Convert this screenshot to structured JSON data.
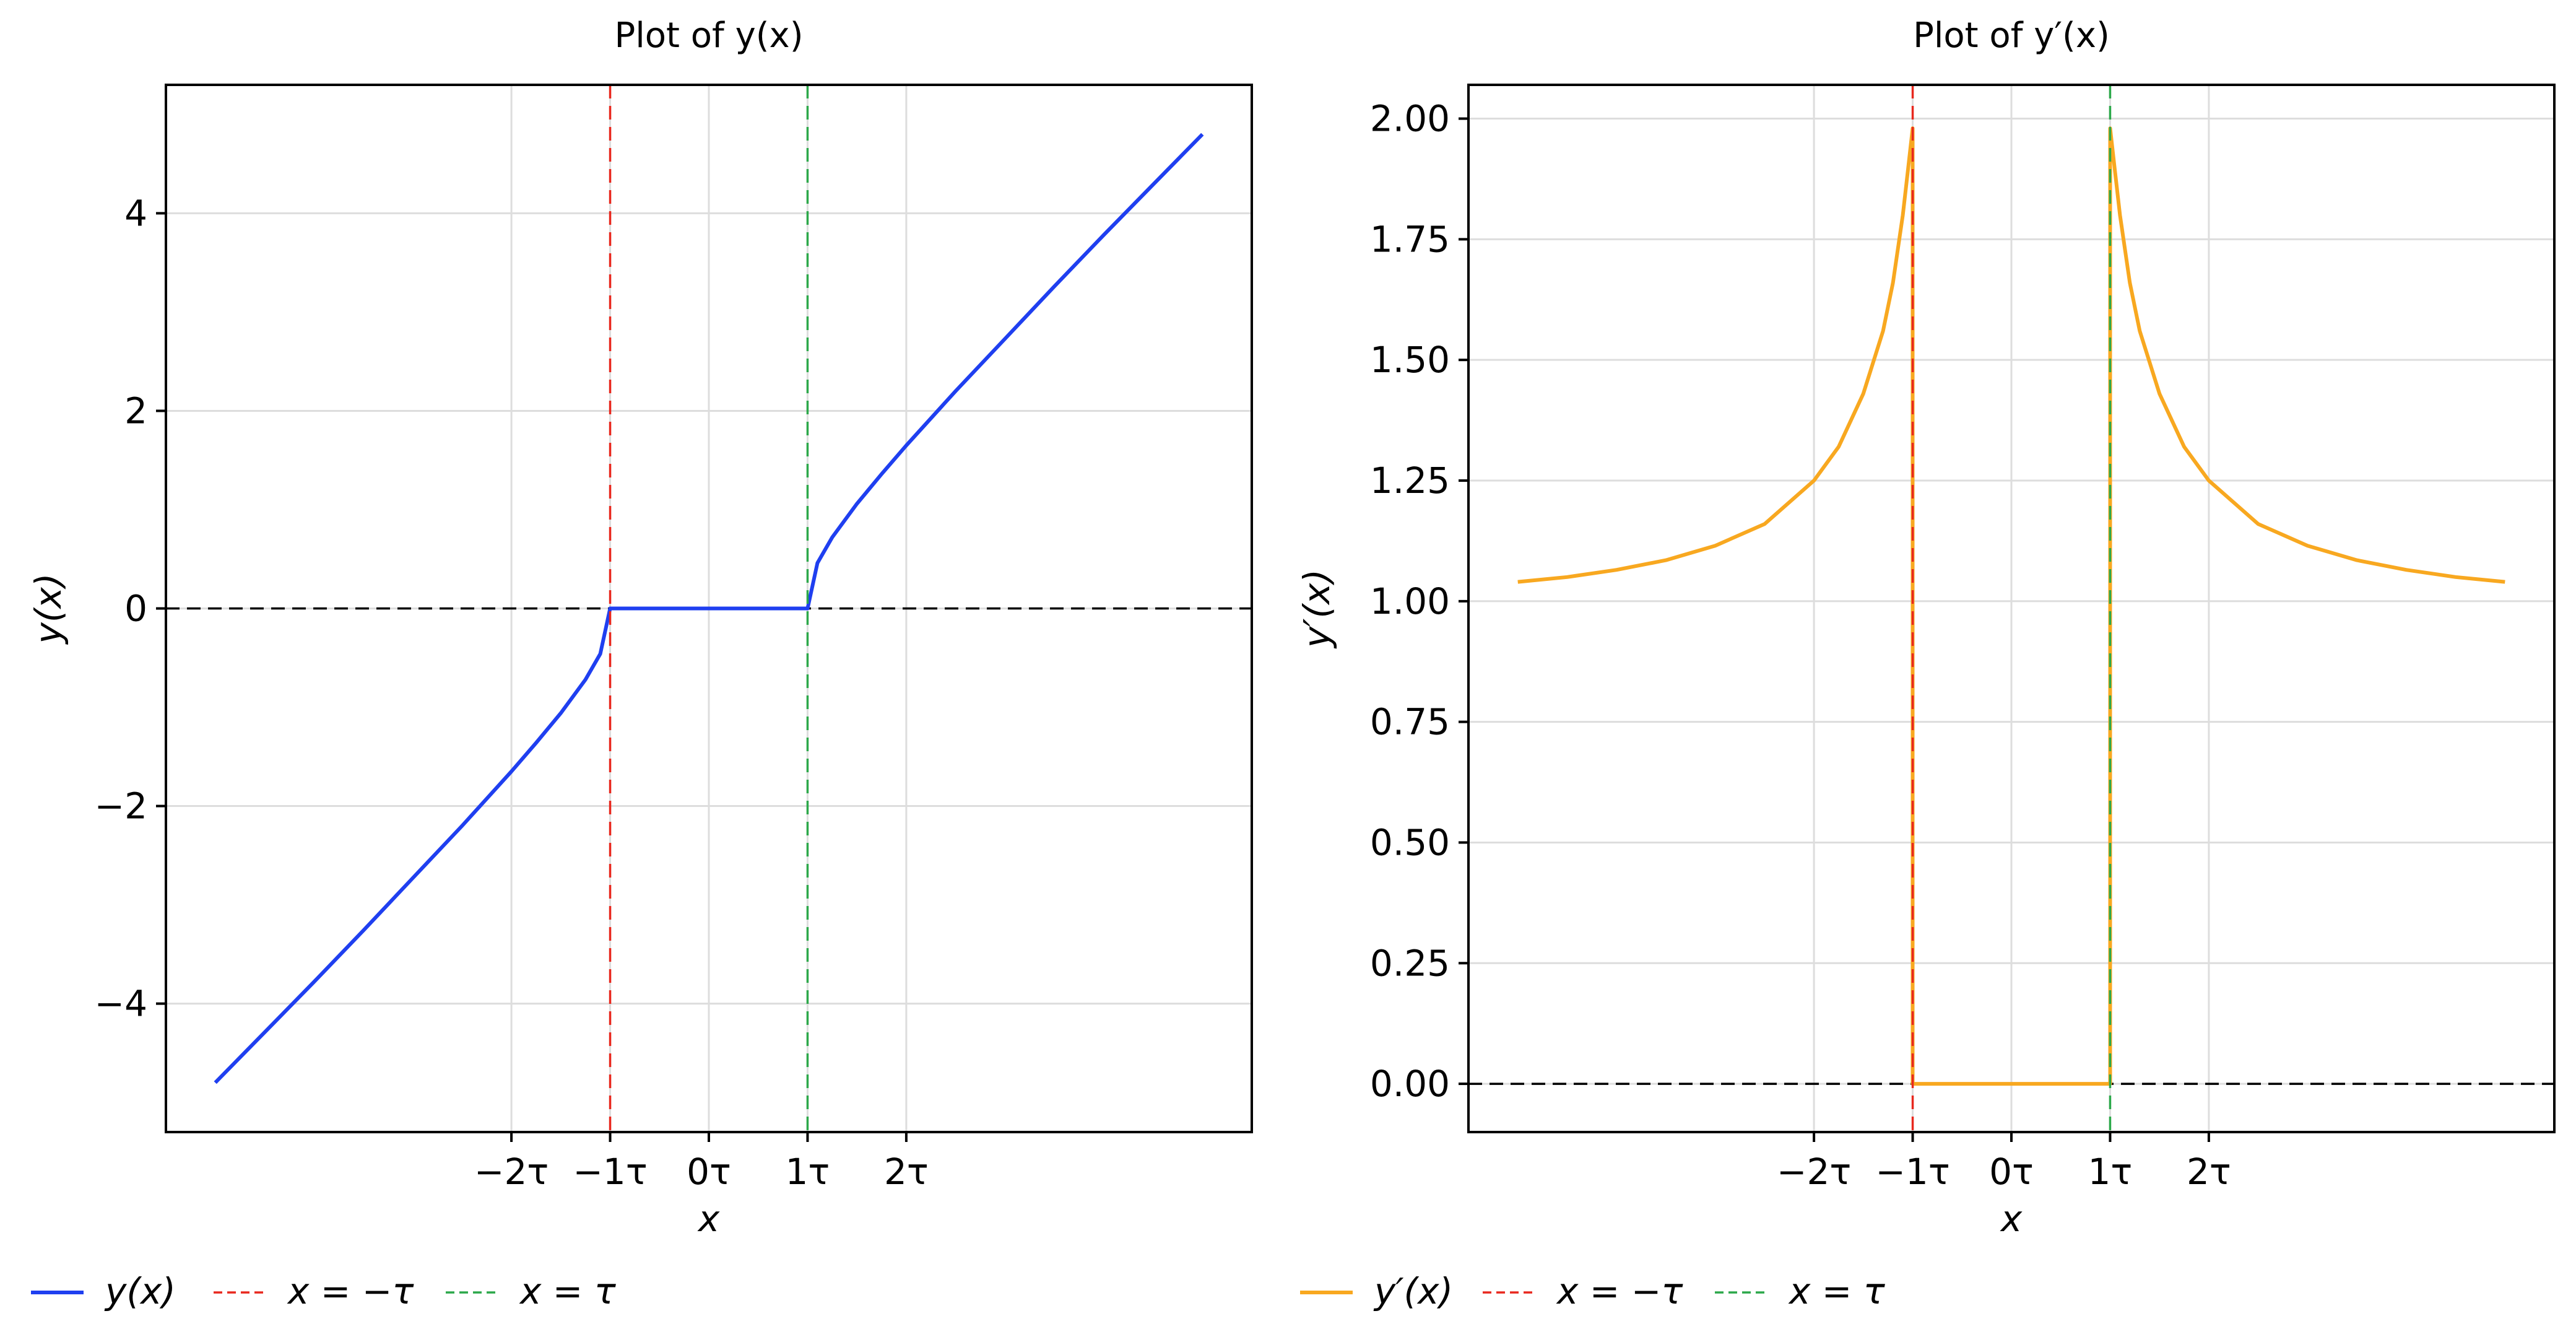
{
  "chart_data": [
    {
      "type": "line",
      "title": "Plot of y(x)",
      "xlabel": "x",
      "ylabel": "y(x)",
      "xlim": [
        -5.5,
        5.5
      ],
      "ylim": [
        -5.3,
        5.3
      ],
      "x_ticks": [
        {
          "value": -2,
          "label": "−2τ"
        },
        {
          "value": -1,
          "label": "−1τ"
        },
        {
          "value": 0,
          "label": "0τ"
        },
        {
          "value": 1,
          "label": "1τ"
        },
        {
          "value": 2,
          "label": "2τ"
        }
      ],
      "y_ticks": [
        {
          "value": 4,
          "label": "4"
        },
        {
          "value": 2,
          "label": "2"
        },
        {
          "value": 0,
          "label": "0"
        },
        {
          "value": -2,
          "label": "−2"
        },
        {
          "value": -4,
          "label": "−4"
        }
      ],
      "grid": true,
      "legend_position": "below",
      "series": [
        {
          "name": "y(x)",
          "color": "#1f3ff0",
          "style": "solid",
          "x": [
            -5.0,
            -4.5,
            -4.0,
            -3.5,
            -3.0,
            -2.5,
            -2.0,
            -1.75,
            -1.5,
            -1.25,
            -1.1,
            -1.0,
            -0.5,
            0.0,
            0.5,
            1.0,
            1.1,
            1.25,
            1.5,
            1.75,
            2.0,
            2.5,
            3.0,
            3.5,
            4.0,
            4.5,
            5.0
          ],
          "y": [
            -4.8,
            -4.29,
            -3.78,
            -3.26,
            -2.73,
            -2.2,
            -1.65,
            -1.36,
            -1.06,
            -0.72,
            -0.46,
            0.0,
            0.0,
            0.0,
            0.0,
            0.0,
            0.46,
            0.72,
            1.06,
            1.36,
            1.65,
            2.2,
            2.73,
            3.26,
            3.78,
            4.29,
            4.8
          ]
        },
        {
          "name": "x = −τ",
          "color": "#e8281e",
          "style": "dashed",
          "orientation": "vertical",
          "x_value": -1
        },
        {
          "name": "x = τ",
          "color": "#2ca84a",
          "style": "dashed",
          "orientation": "vertical",
          "x_value": 1
        }
      ],
      "baseline": {
        "y_value": 0,
        "color": "#000000",
        "style": "dashed"
      }
    },
    {
      "type": "line",
      "title": "Plot of y′(x)",
      "xlabel": "x",
      "ylabel": "y′(x)",
      "xlim": [
        -5.5,
        5.5
      ],
      "ylim": [
        -0.1,
        2.07
      ],
      "x_ticks": [
        {
          "value": -2,
          "label": "−2τ"
        },
        {
          "value": -1,
          "label": "−1τ"
        },
        {
          "value": 0,
          "label": "0τ"
        },
        {
          "value": 1,
          "label": "1τ"
        },
        {
          "value": 2,
          "label": "2τ"
        }
      ],
      "y_ticks": [
        {
          "value": 2.0,
          "label": "2.00"
        },
        {
          "value": 1.75,
          "label": "1.75"
        },
        {
          "value": 1.5,
          "label": "1.50"
        },
        {
          "value": 1.25,
          "label": "1.25"
        },
        {
          "value": 1.0,
          "label": "1.00"
        },
        {
          "value": 0.75,
          "label": "0.75"
        },
        {
          "value": 0.5,
          "label": "0.50"
        },
        {
          "value": 0.25,
          "label": "0.25"
        },
        {
          "value": 0.0,
          "label": "0.00"
        }
      ],
      "grid": true,
      "legend_position": "below",
      "series": [
        {
          "name": "y′(x)",
          "color": "#f8a820",
          "style": "solid",
          "x": [
            -5.0,
            -4.5,
            -4.0,
            -3.5,
            -3.0,
            -2.5,
            -2.0,
            -1.75,
            -1.5,
            -1.3,
            -1.2,
            -1.1,
            -1.05,
            -1.0,
            -1.0,
            0.0,
            1.0,
            1.0,
            1.05,
            1.1,
            1.2,
            1.3,
            1.5,
            1.75,
            2.0,
            2.5,
            3.0,
            3.5,
            4.0,
            4.5,
            5.0
          ],
          "y": [
            1.04,
            1.05,
            1.065,
            1.085,
            1.115,
            1.16,
            1.25,
            1.32,
            1.43,
            1.56,
            1.66,
            1.8,
            1.89,
            1.98,
            0.0,
            0.0,
            0.0,
            1.98,
            1.89,
            1.8,
            1.66,
            1.56,
            1.43,
            1.32,
            1.25,
            1.16,
            1.115,
            1.085,
            1.065,
            1.05,
            1.04
          ]
        },
        {
          "name": "x = −τ",
          "color": "#e8281e",
          "style": "dashed",
          "orientation": "vertical",
          "x_value": -1
        },
        {
          "name": "x = τ",
          "color": "#2ca84a",
          "style": "dashed",
          "orientation": "vertical",
          "x_value": 1
        }
      ],
      "baseline": {
        "y_value": 0,
        "color": "#000000",
        "style": "dashed"
      }
    }
  ]
}
